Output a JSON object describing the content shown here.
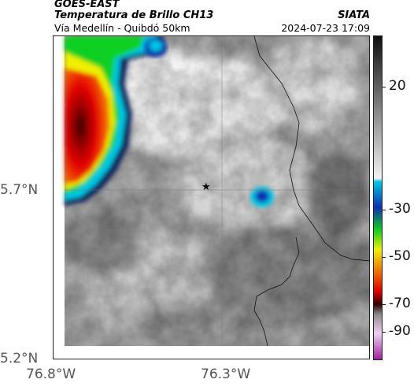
{
  "header": {
    "satellite": "GOES-EAST",
    "product": "Temperatura de Brillo CH13",
    "region": "Vía Medellín - Quibdó 50km",
    "agency": "SIATA",
    "timestamp": "2024-07-23 17:09"
  },
  "axes": {
    "lat_labels": [
      "5.7°N",
      "5.2°N"
    ],
    "lon_labels": [
      "76.8°W",
      "76.3°W"
    ]
  },
  "colorbar": {
    "tick_labels": [
      "20",
      "-30",
      "-50",
      "-70",
      "-90"
    ],
    "colors": {
      "warm_gray_dark": "#5a5a5a",
      "cold_white": "#f2f2f2",
      "cyan": "#00c8e6",
      "blue": "#1030b0",
      "green": "#10d020",
      "yellow": "#f0f000",
      "orange": "#f08000",
      "red": "#e00000",
      "dark_red": "#300000",
      "magenta": "#c040b0"
    }
  },
  "map": {
    "marker": "star-marker"
  }
}
